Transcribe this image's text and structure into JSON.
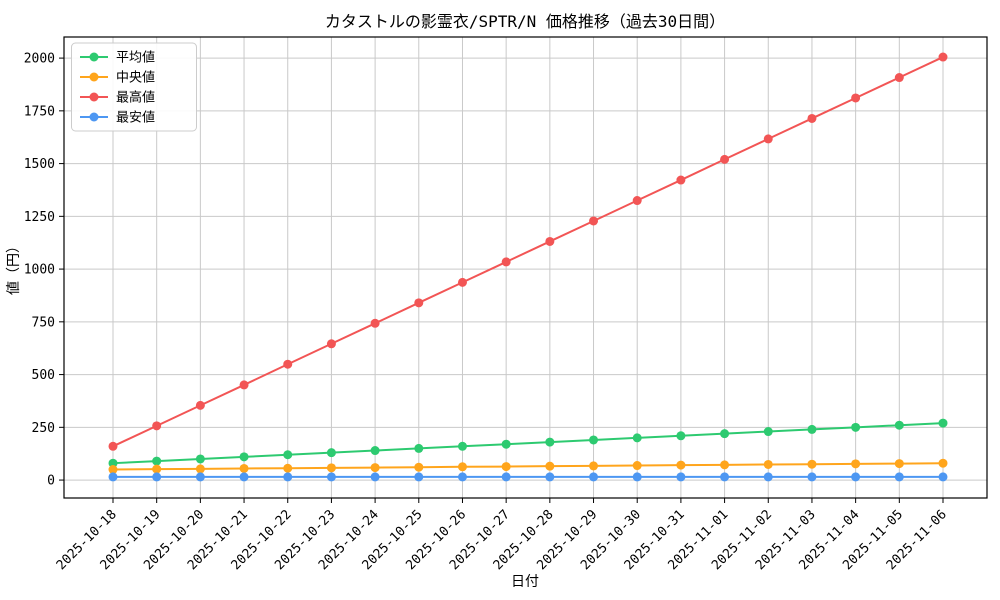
{
  "chart_data": {
    "type": "line",
    "title": "カタストルの影霊衣/SPTR/N 価格推移（過去30日間）",
    "xlabel": "日付",
    "ylabel": "値（円）",
    "grid": true,
    "legend_position": "upper left",
    "xtick_rotation": 45,
    "yticks": [
      0,
      250,
      500,
      750,
      1000,
      1250,
      1500,
      1750,
      2000
    ],
    "ylim": [
      -85,
      2100
    ],
    "categories": [
      "2025-10-18",
      "2025-10-19",
      "2025-10-20",
      "2025-10-21",
      "2025-10-22",
      "2025-10-23",
      "2025-10-24",
      "2025-10-25",
      "2025-10-26",
      "2025-10-27",
      "2025-10-28",
      "2025-10-29",
      "2025-10-30",
      "2025-10-31",
      "2025-11-01",
      "2025-11-02",
      "2025-11-03",
      "2025-11-04",
      "2025-11-05",
      "2025-11-06"
    ],
    "series": [
      {
        "key": "average",
        "name": "平均値",
        "color": "#2dca70",
        "values": [
          80,
          90,
          100,
          110,
          120,
          130,
          140,
          150,
          160,
          170,
          180,
          190,
          200,
          210,
          220,
          230,
          240,
          250,
          260,
          270
        ]
      },
      {
        "key": "median",
        "name": "中央値",
        "color": "#ffa51c",
        "values": [
          50,
          52,
          53,
          55,
          56,
          58,
          59,
          61,
          63,
          64,
          66,
          67,
          69,
          71,
          72,
          74,
          75,
          77,
          78,
          80
        ]
      },
      {
        "key": "max",
        "name": "最高値",
        "color": "#f25555",
        "values": [
          160,
          257,
          354,
          451,
          549,
          646,
          743,
          840,
          937,
          1034,
          1131,
          1228,
          1325,
          1422,
          1520,
          1617,
          1714,
          1811,
          1908,
          2005
        ]
      },
      {
        "key": "min",
        "name": "最安値",
        "color": "#4d97f2",
        "values": [
          15,
          15,
          15,
          15,
          15,
          15,
          15,
          15,
          15,
          15,
          15,
          15,
          15,
          15,
          15,
          15,
          15,
          15,
          15,
          15
        ]
      }
    ]
  }
}
